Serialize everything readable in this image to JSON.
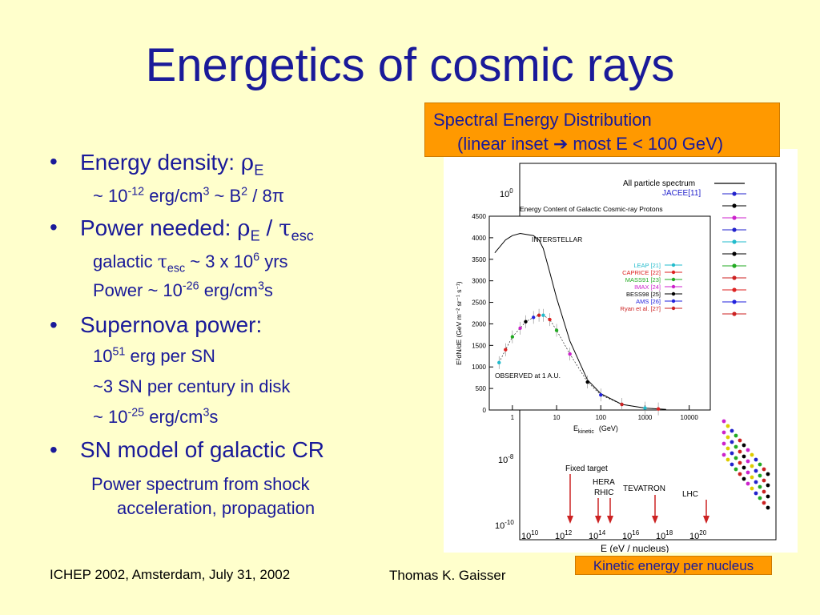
{
  "title": "Energetics of cosmic rays",
  "bullets": {
    "b1_text": "Energy density: ",
    "b1_rho": "ρ",
    "b1_sub": "E",
    "b1_line1_a": "~ 10",
    "b1_line1_sup": "-12",
    "b1_line1_b": " erg/cm",
    "b1_line1_sup2": "3",
    "b1_line1_c": " ~ B",
    "b1_line1_sup3": "2",
    "b1_line1_d": " / 8π",
    "b2_text": "Power needed: ",
    "b2_rho": "ρ",
    "b2_sub": "E",
    "b2_mid": " / ",
    "b2_tau": "τ",
    "b2_sub2": "esc",
    "b2_line1_a": "galactic ",
    "b2_line1_tau": "τ",
    "b2_line1_sub": "esc",
    "b2_line1_b": " ~ 3 x 10",
    "b2_line1_sup": "6",
    "b2_line1_c": " yrs",
    "b2_line2_a": "Power ~ 10",
    "b2_line2_sup": "-26",
    "b2_line2_b": " erg/cm",
    "b2_line2_sup2": "3",
    "b2_line2_c": "s",
    "b3_text": "Supernova power:",
    "b3_line1_a": "10",
    "b3_line1_sup": "51",
    "b3_line1_b": " erg per SN",
    "b3_line2": "~3 SN per century in disk",
    "b3_line3_a": "~ 10",
    "b3_line3_sup": "-25",
    "b3_line3_b": " erg/cm",
    "b3_line3_sup2": "3",
    "b3_line3_c": "s",
    "b4_text": "SN model of galactic CR",
    "b4_line1": "Power spectrum from shock",
    "b4_line2": "acceleration, propagation",
    "bullet_char": "•"
  },
  "orange_box": {
    "line1": "Spectral Energy Distribution",
    "line2_a": "(linear inset ",
    "arrow": "➔",
    "line2_b": " most E < 100 GeV)"
  },
  "kinetic_label": "Kinetic energy per nucleus",
  "footer": {
    "left": "ICHEP 2002, Amsterdam, July 31, 2002",
    "right": "Thomas K. Gaisser"
  },
  "figure": {
    "legend_all": "All particle spectrum",
    "legend_jacee": "JACEE[11]",
    "inset_title": "Energy Content of Galactic Cosmic-ray Protons",
    "interstellar": "INTERSTELLAR",
    "observed": "OBSERVED at 1 A.U.",
    "inset_legend": [
      {
        "name": "LEAP [21]",
        "color": "#22bbcc"
      },
      {
        "name": "CAPRICE [22]",
        "color": "#dd2222"
      },
      {
        "name": "MASS91 [23]",
        "color": "#22aa22"
      },
      {
        "name": "IMAX [24]",
        "color": "#cc22cc"
      },
      {
        "name": "BESS98 [25]",
        "color": "#000000"
      },
      {
        "name": "AMS [26]",
        "color": "#2222dd"
      },
      {
        "name": "Ryan et al. [27]",
        "color": "#cc2222"
      }
    ],
    "inset_yticks": [
      "4500",
      "4000",
      "3500",
      "3000",
      "2500",
      "2000",
      "1500",
      "1000",
      "500",
      "0"
    ],
    "inset_xticks": [
      "1",
      "10",
      "100",
      "1000",
      "10000"
    ],
    "inset_ylabel": "E²dN/dE   (GeV m⁻² sr⁻¹ s⁻¹)",
    "inset_xlabel": "E",
    "inset_xlabel_sub": "kinetic",
    "inset_xlabel_unit": "(GeV)",
    "main_ytick_top": "10",
    "main_ytick_top_sup": "0",
    "main_ytick_mid": "10",
    "main_ytick_mid_sup": "-8",
    "main_ytick_bot": "10",
    "main_ytick_bot_sup": "-10",
    "main_xticks": [
      {
        "base": "10",
        "exp": "10"
      },
      {
        "base": "10",
        "exp": "12"
      },
      {
        "base": "10",
        "exp": "14"
      },
      {
        "base": "10",
        "exp": "16"
      },
      {
        "base": "10",
        "exp": "18"
      },
      {
        "base": "10",
        "exp": "20"
      }
    ],
    "main_xlabel": "E      (eV / nucleus)",
    "accelerators": {
      "fixed_target": "Fixed target",
      "hera": "HERA",
      "rhic": "RHIC",
      "tevatron": "TEVATRON",
      "lhc": "LHC"
    }
  },
  "chart_data": {
    "type": "line",
    "title": "Energy Content of Galactic Cosmic-ray Protons",
    "xlabel": "E kinetic (GeV)",
    "ylabel": "E²dN/dE (GeV m⁻² sr⁻¹ s⁻¹)",
    "xscale": "log",
    "xlim": [
      0.3,
      30000
    ],
    "ylim": [
      0,
      4500
    ],
    "series": [
      {
        "name": "INTERSTELLAR",
        "x": [
          0.4,
          0.7,
          1,
          1.5,
          2,
          3,
          4,
          5,
          7,
          10,
          20,
          50,
          100,
          300,
          1000,
          3000
        ],
        "y": [
          3650,
          3950,
          4050,
          4100,
          4080,
          4050,
          3950,
          3750,
          3200,
          2600,
          1600,
          700,
          380,
          130,
          45,
          15
        ]
      },
      {
        "name": "OBSERVED at 1 A.U.",
        "x": [
          0.5,
          0.7,
          1,
          1.5,
          2,
          3,
          4,
          5,
          7,
          10,
          20,
          50,
          100,
          300,
          1000,
          2000
        ],
        "y": [
          1100,
          1400,
          1700,
          1900,
          2050,
          2150,
          2200,
          2200,
          2100,
          1850,
          1300,
          650,
          350,
          130,
          45,
          25
        ]
      }
    ]
  }
}
